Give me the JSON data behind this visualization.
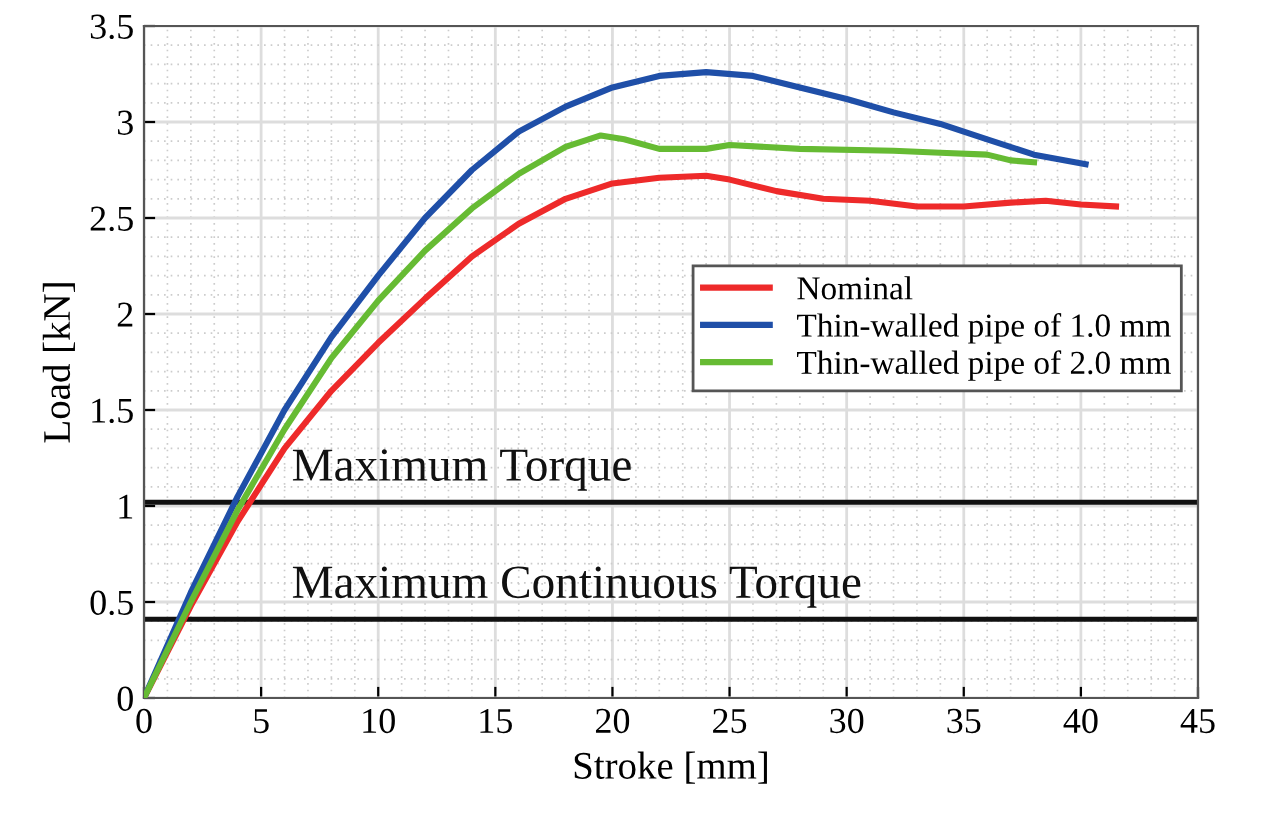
{
  "chart_data": {
    "type": "line",
    "xlabel": "Stroke [mm]",
    "ylabel": "Load [kN]",
    "xlim": [
      0,
      45
    ],
    "xticks": [
      0,
      5,
      10,
      15,
      20,
      25,
      30,
      35,
      40,
      45
    ],
    "ylim": [
      0,
      3.5
    ],
    "yticks": [
      0,
      0.5,
      1,
      1.5,
      2,
      2.5,
      3,
      3.5
    ],
    "grid": true,
    "legend": "center right",
    "line_style": "solid",
    "marker": "none",
    "series": [
      {
        "name": "Nominal",
        "color": "#ee2a2a",
        "x": [
          0,
          2,
          4,
          6,
          8,
          10,
          12,
          14,
          16,
          18,
          20,
          22,
          24,
          25,
          27,
          29,
          31,
          33,
          35,
          37,
          38.5,
          40,
          41.5
        ],
        "values": [
          0,
          0.48,
          0.92,
          1.3,
          1.6,
          1.85,
          2.08,
          2.3,
          2.47,
          2.6,
          2.68,
          2.71,
          2.72,
          2.7,
          2.64,
          2.6,
          2.59,
          2.56,
          2.56,
          2.58,
          2.59,
          2.57,
          2.56
        ]
      },
      {
        "name": "Thin-walled pipe of 1.0 mm",
        "color": "#1f4fa8",
        "x": [
          0,
          2,
          4,
          6,
          8,
          10,
          12,
          14,
          16,
          18,
          20,
          22,
          24,
          26,
          28,
          30,
          32,
          34,
          36,
          38,
          40.2
        ],
        "values": [
          0,
          0.55,
          1.05,
          1.5,
          1.88,
          2.2,
          2.5,
          2.75,
          2.95,
          3.08,
          3.18,
          3.24,
          3.26,
          3.24,
          3.18,
          3.12,
          3.05,
          2.99,
          2.91,
          2.83,
          2.78
        ]
      },
      {
        "name": "Thin-walled pipe of 2.0 mm",
        "color": "#66bb33",
        "x": [
          0,
          2,
          4,
          6,
          8,
          10,
          12,
          14,
          16,
          18,
          19.5,
          20.5,
          22,
          24,
          25,
          28,
          32,
          34,
          36,
          37,
          38
        ],
        "values": [
          0,
          0.5,
          0.98,
          1.4,
          1.77,
          2.07,
          2.33,
          2.55,
          2.73,
          2.87,
          2.93,
          2.91,
          2.86,
          2.86,
          2.88,
          2.86,
          2.85,
          2.84,
          2.83,
          2.8,
          2.79
        ]
      }
    ],
    "ref_lines": [
      {
        "axis": "y",
        "value": 1.02,
        "label": "Maximum Torque",
        "color": "#111111"
      },
      {
        "axis": "y",
        "value": 0.41,
        "label": "Maximum Continuous Torque",
        "color": "#111111"
      }
    ]
  }
}
